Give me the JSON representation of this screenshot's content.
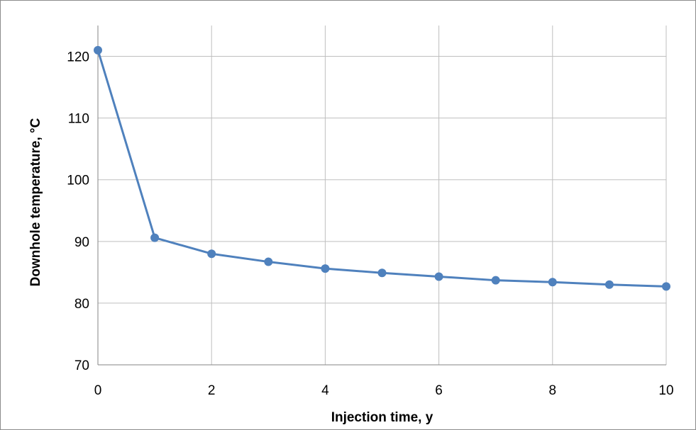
{
  "chart_data": {
    "type": "line",
    "title": "",
    "xlabel": "Injection time, y",
    "ylabel": "Downhole temperature, °C",
    "xlim": [
      0,
      10
    ],
    "ylim": [
      70,
      125
    ],
    "xticks": [
      0,
      2,
      4,
      6,
      8,
      10
    ],
    "yticks": [
      70,
      80,
      90,
      100,
      110,
      120
    ],
    "grid": true,
    "legend": "none",
    "series": [
      {
        "color": "#4f81bd",
        "x": [
          0,
          1,
          2,
          3,
          4,
          5,
          6,
          7,
          8,
          9,
          10
        ],
        "y": [
          121.0,
          90.6,
          88.0,
          86.7,
          85.6,
          84.9,
          84.3,
          83.7,
          83.4,
          83.0,
          82.7
        ]
      }
    ]
  }
}
